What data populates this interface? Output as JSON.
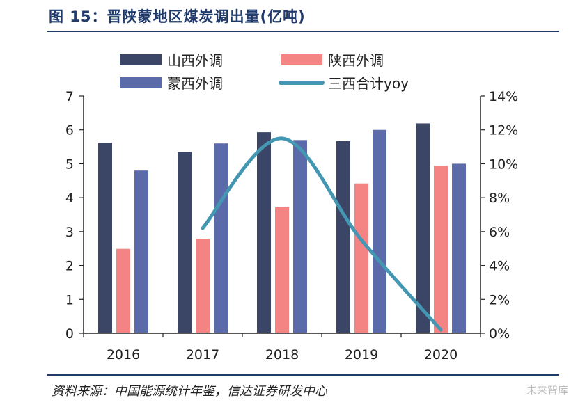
{
  "title": "图 15：晋陕蒙地区煤炭调出量(亿吨)",
  "source": "资料来源：中国能源统计年鉴，信达证券研发中心",
  "watermark": "未来智库",
  "chart_data": {
    "type": "bar",
    "categories": [
      "2016",
      "2017",
      "2018",
      "2019",
      "2020"
    ],
    "series": [
      {
        "name": "山西外调",
        "type": "bar",
        "axis": "left",
        "color": "#3b4566",
        "values": [
          5.62,
          5.35,
          5.93,
          5.67,
          6.19
        ]
      },
      {
        "name": "陕西外调",
        "type": "bar",
        "axis": "left",
        "color": "#f48484",
        "values": [
          2.49,
          2.79,
          3.72,
          4.42,
          4.94
        ]
      },
      {
        "name": "蒙西外调",
        "type": "bar",
        "axis": "left",
        "color": "#5b6aa8",
        "values": [
          4.8,
          5.6,
          5.7,
          6.0,
          5.0
        ]
      },
      {
        "name": "三西合计yoy",
        "type": "line",
        "axis": "right",
        "color": "#4497b3",
        "values": [
          null,
          6.2,
          11.5,
          5.5,
          0.2
        ]
      }
    ],
    "y_left": {
      "min": 0,
      "max": 7,
      "ticks": [
        "0",
        "1",
        "2",
        "3",
        "4",
        "5",
        "6",
        "7"
      ]
    },
    "y_right": {
      "min": 0,
      "max": 14,
      "ticks": [
        "0%",
        "2%",
        "4%",
        "6%",
        "8%",
        "10%",
        "12%",
        "14%"
      ]
    },
    "legend": {
      "position": "top"
    }
  }
}
